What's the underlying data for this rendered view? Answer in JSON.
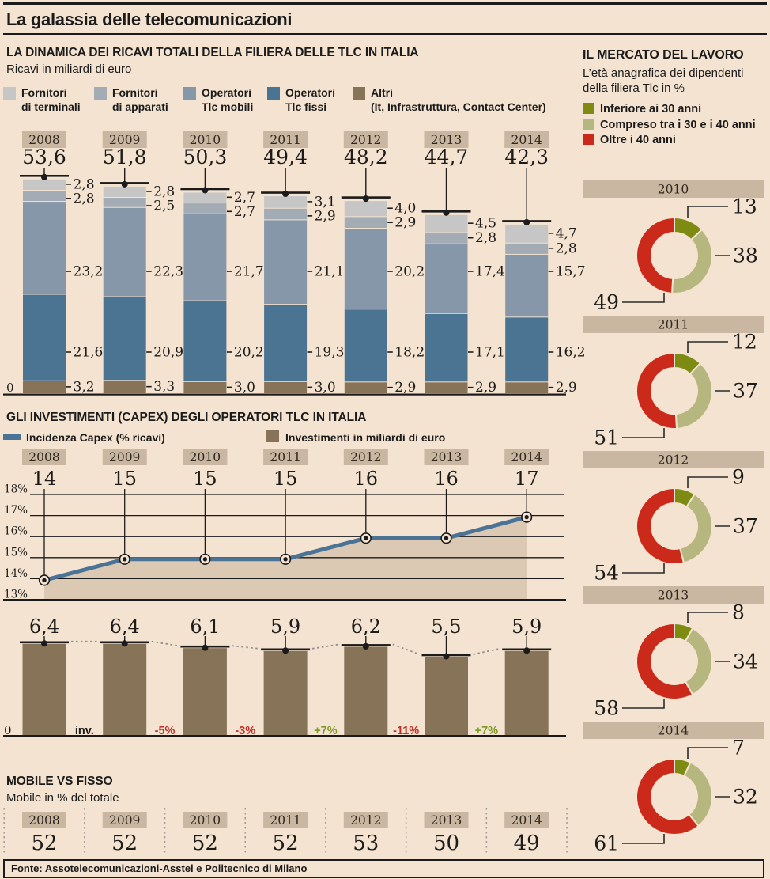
{
  "page": {
    "title": "La galassia delle telecomunicazioni",
    "source": "Fonte: Assotelecomunicazioni-Asstel e Politecnico di Milano",
    "colors": {
      "background": "#f4e3d0",
      "band": "#cab7a2",
      "ink": "#1b1b1b",
      "dotted": "#8f8f8f"
    }
  },
  "chart_data": [
    {
      "id": "ricavi_stacked",
      "type": "bar",
      "stacked": true,
      "title": "LA DINAMICA DEI RICAVI TOTALI DELLA FILIERA DELLE TLC IN ITALIA",
      "subtitle": "Ricavi in miliardi di euro",
      "categories": [
        "2008",
        "2009",
        "2010",
        "2011",
        "2012",
        "2013",
        "2014"
      ],
      "totals": [
        53.6,
        51.8,
        50.3,
        49.4,
        48.2,
        44.7,
        42.3
      ],
      "totals_display": [
        "53,6",
        "51,8",
        "50,3",
        "49,4",
        "48,2",
        "44,7",
        "42,3"
      ],
      "zero_label": "0",
      "legend": [
        {
          "lines": [
            "Fornitori",
            "di terminali"
          ],
          "color": "#c7c6c6"
        },
        {
          "lines": [
            "Fornitori",
            "di apparati"
          ],
          "color": "#a3abb4"
        },
        {
          "lines": [
            "Operatori",
            "Tlc mobili"
          ],
          "color": "#8597a9"
        },
        {
          "lines": [
            "Operatori",
            "Tlc fissi"
          ],
          "color": "#4b7392"
        },
        {
          "lines": [
            "Altri",
            "(It, Infrastruttura, Contact Center)"
          ],
          "color": "#877358"
        }
      ],
      "series": [
        {
          "name": "Altri (It, Infrastruttura, Contact Center)",
          "color": "#877358",
          "values": [
            3.2,
            3.3,
            3.0,
            3.0,
            2.9,
            2.9,
            2.9
          ],
          "display": [
            "3,2",
            "3,3",
            "3,0",
            "3,0",
            "2,9",
            "2,9",
            "2,9"
          ]
        },
        {
          "name": "Operatori Tlc fissi",
          "color": "#4b7392",
          "values": [
            21.6,
            20.9,
            20.2,
            19.3,
            18.2,
            17.1,
            16.2
          ],
          "display": [
            "21,6",
            "20,9",
            "20,2",
            "19,3",
            "18,2",
            "17,1",
            "16,2"
          ]
        },
        {
          "name": "Operatori Tlc mobili",
          "color": "#8597a9",
          "values": [
            23.2,
            22.3,
            21.7,
            21.1,
            20.2,
            17.4,
            15.7
          ],
          "display": [
            "23,2",
            "22,3",
            "21,7",
            "21,1",
            "20,2",
            "17,4",
            "15,7"
          ]
        },
        {
          "name": "Fornitori di apparati",
          "color": "#a3abb4",
          "values": [
            2.8,
            2.5,
            2.7,
            2.9,
            2.9,
            2.8,
            2.8
          ],
          "display": [
            "2,8",
            "2,5",
            "2,7",
            "2,9",
            "2,9",
            "2,8",
            "2,8"
          ]
        },
        {
          "name": "Fornitori di terminali",
          "color": "#c7c6c6",
          "values": [
            2.8,
            2.8,
            2.7,
            3.1,
            4.0,
            4.5,
            4.7
          ],
          "display": [
            "2,8",
            "2,8",
            "2,7",
            "3,1",
            "4,0",
            "4,5",
            "4,7"
          ]
        }
      ]
    },
    {
      "id": "capex_line",
      "type": "line",
      "title": "GLI INVESTIMENTI (CAPEX) DEGLI OPERATORI TLC IN ITALIA",
      "legend_line": {
        "label": "Incidenza Capex (% ricavi)",
        "color": "#4a7396"
      },
      "legend_bar": {
        "label": "Investimenti in miliardi di euro",
        "color": "#877358"
      },
      "categories": [
        "2008",
        "2009",
        "2010",
        "2011",
        "2012",
        "2013",
        "2014"
      ],
      "values": [
        14,
        15,
        15,
        15,
        16,
        16,
        17
      ],
      "ylim": [
        13,
        18
      ],
      "yticks": [
        "18%",
        "17%",
        "16%",
        "15%",
        "14%",
        "13%"
      ],
      "area_fill": "#dbc9b4",
      "line_color": "#4a7396"
    },
    {
      "id": "capex_bars",
      "type": "bar",
      "categories": [
        "2008",
        "2009",
        "2010",
        "2011",
        "2012",
        "2013",
        "2014"
      ],
      "values": [
        6.4,
        6.4,
        6.1,
        5.9,
        6.2,
        5.5,
        5.9
      ],
      "display": [
        "6,4",
        "6,4",
        "6,1",
        "5,9",
        "6,2",
        "5,5",
        "5,9"
      ],
      "bar_color": "#877358",
      "zero_label": "0",
      "deltas": [
        {
          "label": "inv.",
          "color": "#1b1b1b"
        },
        {
          "label": "-5%",
          "color": "#c22d26"
        },
        {
          "label": "-3%",
          "color": "#c22d26"
        },
        {
          "label": "+7%",
          "color": "#7d9a23"
        },
        {
          "label": "-11%",
          "color": "#c22d26"
        },
        {
          "label": "+7%",
          "color": "#7d9a23"
        }
      ]
    },
    {
      "id": "mobile_share",
      "type": "table",
      "title": "MOBILE VS FISSO",
      "subtitle": "Mobile in % del totale",
      "categories": [
        "2008",
        "2009",
        "2010",
        "2011",
        "2012",
        "2013",
        "2014"
      ],
      "values": [
        52,
        52,
        52,
        52,
        53,
        50,
        49
      ]
    },
    {
      "id": "labor_donuts",
      "type": "pie",
      "title": "IL MERCATO DEL LAVORO",
      "subtitle": "L’età anagrafica dei dipendenti della filiera Tlc in %",
      "legend": [
        {
          "label": "Inferiore ai 30 anni",
          "color": "#7d8b12"
        },
        {
          "label": "Compreso tra i 30 e i 40 anni",
          "color": "#b5b77e"
        },
        {
          "label": "Oltre i 40 anni",
          "color": "#cb2a1a"
        }
      ],
      "donuts": [
        {
          "year": "2010",
          "values": [
            13,
            38,
            49
          ]
        },
        {
          "year": "2011",
          "values": [
            12,
            37,
            51
          ]
        },
        {
          "year": "2012",
          "values": [
            9,
            37,
            54
          ]
        },
        {
          "year": "2013",
          "values": [
            8,
            34,
            58
          ]
        },
        {
          "year": "2014",
          "values": [
            7,
            32,
            61
          ]
        }
      ]
    }
  ]
}
